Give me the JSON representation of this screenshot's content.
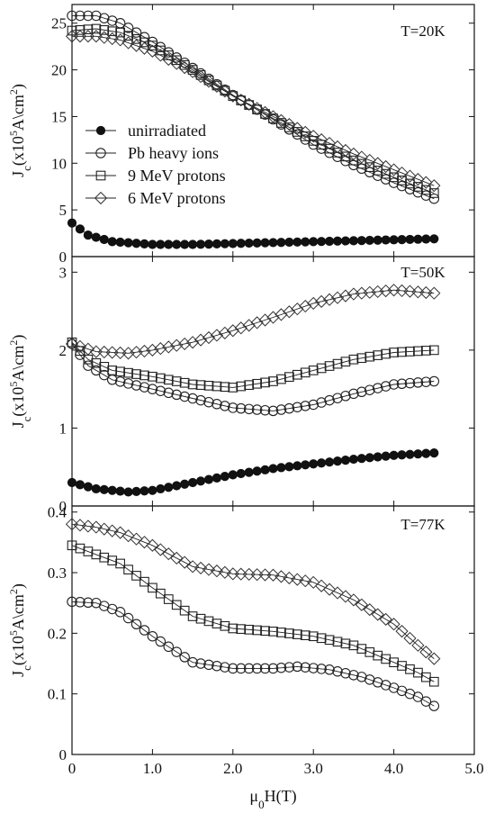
{
  "chart_data": {
    "type": "line",
    "xlabel": "μ0H(T)",
    "x_ticks": [
      "0",
      "1.0",
      "2.0",
      "3.0",
      "4.0",
      "5.0"
    ],
    "xlim": [
      0,
      5
    ],
    "legend": [
      {
        "name": "unirradiated",
        "marker": "filled-circle"
      },
      {
        "name": "Pb heavy ions",
        "marker": "open-circle"
      },
      {
        "name": "9 MeV protons",
        "marker": "open-square"
      },
      {
        "name": "6 MeV protons",
        "marker": "open-diamond"
      }
    ],
    "legend_placement": "center-left of top panel",
    "panels": [
      {
        "temperature": "T=20K",
        "ylabel": "Jc(x10^5A\\cm^2)",
        "ylim": [
          0,
          27
        ],
        "y_ticks": [
          0,
          5,
          10,
          15,
          20,
          25
        ],
        "series": [
          {
            "name": "unirradiated",
            "points": [
              [
                0,
                3.6
              ],
              [
                0.2,
                2.3
              ],
              [
                0.5,
                1.6
              ],
              [
                1.0,
                1.3
              ],
              [
                1.5,
                1.3
              ],
              [
                2.0,
                1.4
              ],
              [
                2.5,
                1.5
              ],
              [
                3.0,
                1.6
              ],
              [
                3.5,
                1.7
              ],
              [
                4.0,
                1.8
              ],
              [
                4.5,
                1.9
              ]
            ]
          },
          {
            "name": "Pb heavy ions",
            "points": [
              [
                0,
                25.8
              ],
              [
                0.3,
                25.8
              ],
              [
                0.6,
                25.0
              ],
              [
                1.0,
                23.0
              ],
              [
                1.5,
                20.2
              ],
              [
                2.0,
                17.3
              ],
              [
                2.5,
                14.7
              ],
              [
                3.0,
                12.0
              ],
              [
                3.5,
                9.8
              ],
              [
                4.0,
                7.9
              ],
              [
                4.5,
                6.2
              ]
            ]
          },
          {
            "name": "9 MeV protons",
            "points": [
              [
                0,
                24.2
              ],
              [
                0.3,
                24.4
              ],
              [
                0.6,
                24.0
              ],
              [
                1.0,
                22.6
              ],
              [
                1.5,
                20.0
              ],
              [
                2.0,
                17.2
              ],
              [
                2.5,
                14.8
              ],
              [
                3.0,
                12.4
              ],
              [
                3.5,
                10.3
              ],
              [
                4.0,
                8.5
              ],
              [
                4.5,
                6.8
              ]
            ]
          },
          {
            "name": "6 MeV protons",
            "points": [
              [
                0,
                23.6
              ],
              [
                0.3,
                23.6
              ],
              [
                0.6,
                23.2
              ],
              [
                1.0,
                22.0
              ],
              [
                1.5,
                19.8
              ],
              [
                2.0,
                17.2
              ],
              [
                2.5,
                15.0
              ],
              [
                3.0,
                12.9
              ],
              [
                3.5,
                11.0
              ],
              [
                4.0,
                9.3
              ],
              [
                4.5,
                7.6
              ]
            ]
          }
        ]
      },
      {
        "temperature": "T=50K",
        "ylabel": "Jc(x10^5A\\cm^2)",
        "ylim": [
          0,
          3.2
        ],
        "y_ticks": [
          0,
          1,
          2,
          3
        ],
        "series": [
          {
            "name": "unirradiated",
            "points": [
              [
                0,
                0.3
              ],
              [
                0.3,
                0.22
              ],
              [
                0.7,
                0.18
              ],
              [
                1.0,
                0.2
              ],
              [
                1.5,
                0.3
              ],
              [
                2.0,
                0.4
              ],
              [
                2.5,
                0.48
              ],
              [
                3.0,
                0.54
              ],
              [
                3.5,
                0.6
              ],
              [
                4.0,
                0.65
              ],
              [
                4.5,
                0.68
              ]
            ]
          },
          {
            "name": "Pb heavy ions",
            "points": [
              [
                0,
                2.08
              ],
              [
                0.2,
                1.8
              ],
              [
                0.5,
                1.62
              ],
              [
                1.0,
                1.5
              ],
              [
                1.5,
                1.38
              ],
              [
                2.0,
                1.26
              ],
              [
                2.5,
                1.22
              ],
              [
                3.0,
                1.3
              ],
              [
                3.5,
                1.44
              ],
              [
                4.0,
                1.56
              ],
              [
                4.5,
                1.6
              ]
            ]
          },
          {
            "name": "9 MeV protons",
            "points": [
              [
                0,
                2.1
              ],
              [
                0.2,
                1.88
              ],
              [
                0.5,
                1.74
              ],
              [
                1.0,
                1.66
              ],
              [
                1.5,
                1.56
              ],
              [
                2.0,
                1.52
              ],
              [
                2.5,
                1.6
              ],
              [
                3.0,
                1.74
              ],
              [
                3.5,
                1.88
              ],
              [
                4.0,
                1.97
              ],
              [
                4.5,
                2.0
              ]
            ]
          },
          {
            "name": "6 MeV protons",
            "points": [
              [
                0,
                2.08
              ],
              [
                0.3,
                1.98
              ],
              [
                0.7,
                1.96
              ],
              [
                1.0,
                2.0
              ],
              [
                1.5,
                2.1
              ],
              [
                2.0,
                2.25
              ],
              [
                2.5,
                2.42
              ],
              [
                3.0,
                2.6
              ],
              [
                3.5,
                2.72
              ],
              [
                4.0,
                2.77
              ],
              [
                4.5,
                2.73
              ]
            ]
          }
        ]
      },
      {
        "temperature": "T=77K",
        "ylabel": "Jc(x10^5A\\cm^2)",
        "ylim": [
          0,
          0.41
        ],
        "y_ticks": [
          "0",
          "0.1",
          "0.2",
          "0.3",
          "0.4"
        ],
        "series": [
          {
            "name": "unirradiated",
            "points": []
          },
          {
            "name": "Pb heavy ions",
            "points": [
              [
                0,
                0.252
              ],
              [
                0.3,
                0.25
              ],
              [
                0.6,
                0.235
              ],
              [
                1.0,
                0.195
              ],
              [
                1.5,
                0.152
              ],
              [
                2.0,
                0.142
              ],
              [
                2.5,
                0.142
              ],
              [
                2.8,
                0.145
              ],
              [
                3.2,
                0.14
              ],
              [
                3.6,
                0.128
              ],
              [
                4.0,
                0.11
              ],
              [
                4.3,
                0.095
              ],
              [
                4.5,
                0.08
              ]
            ]
          },
          {
            "name": "9 MeV protons",
            "points": [
              [
                0,
                0.345
              ],
              [
                0.3,
                0.33
              ],
              [
                0.6,
                0.315
              ],
              [
                1.0,
                0.275
              ],
              [
                1.5,
                0.228
              ],
              [
                2.0,
                0.208
              ],
              [
                2.5,
                0.203
              ],
              [
                3.0,
                0.195
              ],
              [
                3.5,
                0.18
              ],
              [
                4.0,
                0.152
              ],
              [
                4.3,
                0.135
              ],
              [
                4.5,
                0.12
              ]
            ]
          },
          {
            "name": "6 MeV protons",
            "points": [
              [
                0,
                0.38
              ],
              [
                0.3,
                0.375
              ],
              [
                0.6,
                0.366
              ],
              [
                1.0,
                0.345
              ],
              [
                1.5,
                0.31
              ],
              [
                2.0,
                0.298
              ],
              [
                2.5,
                0.296
              ],
              [
                3.0,
                0.284
              ],
              [
                3.5,
                0.255
              ],
              [
                4.0,
                0.215
              ],
              [
                4.3,
                0.18
              ],
              [
                4.5,
                0.158
              ]
            ]
          }
        ]
      }
    ]
  }
}
